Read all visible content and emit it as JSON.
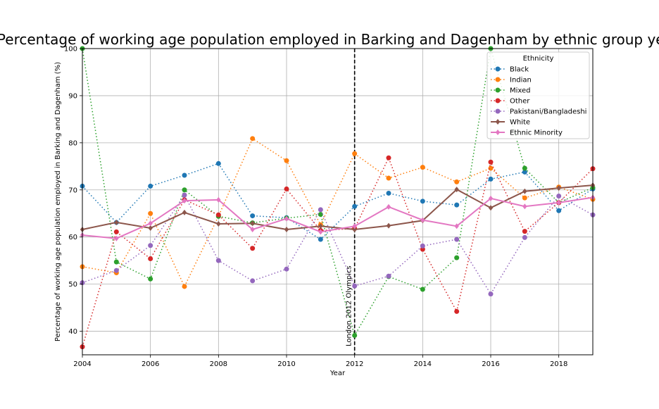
{
  "chart_data": {
    "type": "line",
    "title": "Percentage of working age population employed in Barking and Dagenham by ethnic group year",
    "xlabel": "Year",
    "ylabel": "Percentage of working age population employed in Barking and Dagenham (%)",
    "xlim": [
      2004,
      2019
    ],
    "ylim": [
      35,
      100
    ],
    "xticks": [
      2004,
      2006,
      2008,
      2010,
      2012,
      2014,
      2016,
      2018
    ],
    "yticks": [
      40,
      50,
      60,
      70,
      80,
      90,
      100
    ],
    "grid": true,
    "legend": {
      "title": "Ethnicity",
      "placement": "upper right"
    },
    "x": [
      2004,
      2005,
      2006,
      2007,
      2008,
      2009,
      2010,
      2011,
      2012,
      2013,
      2014,
      2015,
      2016,
      2017,
      2018,
      2019
    ],
    "series": [
      {
        "name": "Black",
        "color": "#1f77b4",
        "style": "dotted",
        "marker": "circle",
        "values": [
          70.8,
          63.1,
          70.8,
          73.1,
          75.6,
          64.5,
          64.1,
          59.5,
          66.5,
          69.3,
          67.6,
          66.8,
          72.3,
          73.8,
          65.6,
          70.2
        ]
      },
      {
        "name": "Indian",
        "color": "#ff7f0e",
        "style": "dotted",
        "marker": "circle",
        "values": [
          53.7,
          52.4,
          65.0,
          49.5,
          64.4,
          80.9,
          76.2,
          62.6,
          77.7,
          72.5,
          74.8,
          71.7,
          74.6,
          68.3,
          70.6,
          68.0
        ]
      },
      {
        "name": "Mixed",
        "color": "#2ca02c",
        "style": "dotted",
        "marker": "circle",
        "values": [
          100.0,
          54.7,
          51.1,
          70.0,
          64.4,
          63.0,
          64.0,
          64.8,
          39.1,
          51.6,
          48.9,
          55.6,
          100.0,
          74.6,
          67.3,
          70.5
        ]
      },
      {
        "name": "Other",
        "color": "#d62728",
        "style": "dotted",
        "marker": "circle",
        "values": [
          36.7,
          61.1,
          55.4,
          67.9,
          64.7,
          57.6,
          70.2,
          61.4,
          61.8,
          76.8,
          57.4,
          44.2,
          75.9,
          61.2,
          67.3,
          74.5
        ]
      },
      {
        "name": "Pakistani/Bangladeshi",
        "color": "#9467bd",
        "style": "dotted",
        "marker": "circle",
        "values": [
          50.3,
          52.9,
          58.2,
          68.9,
          55.0,
          50.7,
          53.2,
          65.8,
          49.6,
          51.7,
          58.1,
          59.5,
          47.9,
          59.9,
          68.7,
          64.7
        ]
      },
      {
        "name": "White",
        "color": "#8c564b",
        "style": "solid",
        "marker": "diamond",
        "values": [
          61.6,
          63.1,
          61.9,
          65.2,
          62.8,
          62.9,
          61.6,
          62.3,
          61.6,
          62.4,
          63.5,
          70.1,
          66.2,
          69.7,
          70.4,
          71.0
        ]
      },
      {
        "name": "Ethnic Minority",
        "color": "#e377c2",
        "style": "solid",
        "marker": "diamond",
        "values": [
          60.4,
          59.7,
          62.9,
          67.7,
          67.9,
          61.6,
          63.9,
          61.1,
          62.3,
          66.4,
          63.6,
          62.3,
          68.2,
          66.5,
          67.3,
          68.4
        ]
      }
    ],
    "annotations": [
      {
        "x": 2012,
        "text": "London 2012 Olympics",
        "style": "dashed vertical line",
        "color": "#000000"
      }
    ]
  }
}
